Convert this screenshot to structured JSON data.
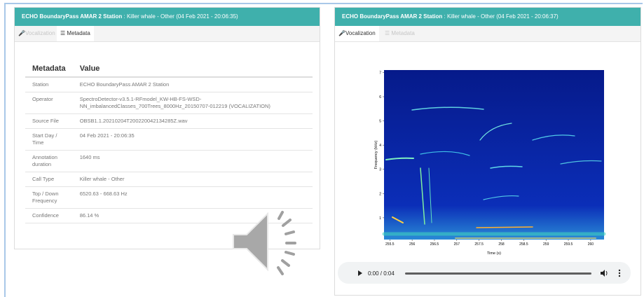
{
  "left_panel": {
    "title_bold": "ECHO BoundaryPass AMAR 2 Station",
    "title_rest": " : Killer whale - Other (04 Feb 2021 - 20:06:35)",
    "tabs": [
      "Vocalization",
      "Metadata"
    ],
    "table": {
      "header": [
        "Metadata",
        "Value"
      ],
      "rows": [
        [
          "Station",
          "ECHO BoundaryPass AMAR 2 Station"
        ],
        [
          "Operator",
          "SpectroDetector-v3.5.1-RFmodel_KW-HB-FS-WSD-NN_imbalancedClasses_700Trees_8000Hz_20150707-012219 (VOCALIZATION)"
        ],
        [
          "Source File",
          "OBSB1.1.20210204T200220042134285Z.wav"
        ],
        [
          "Start Day / Time",
          "04 Feb 2021 - 20:06:35"
        ],
        [
          "Annotation duration",
          "1640 ms"
        ],
        [
          "Call Type",
          "Killer whale - Other"
        ],
        [
          "Top / Down Frequency",
          "6520.63 - 668.63 Hz"
        ],
        [
          "Confidence",
          "86.14 %"
        ]
      ]
    }
  },
  "right_panel": {
    "title_bold": "ECHO BoundaryPass AMAR 2 Station",
    "title_rest": " : Killer whale - Other (04 Feb 2021 - 20:06:37)",
    "tabs": [
      "Vocalization",
      "Metadata"
    ],
    "spectrogram": {
      "xlabel": "Time (s)",
      "ylabel": "Frequency (kHz)",
      "xlim": [
        255.37,
        260.3
      ],
      "xticks": [
        255.5,
        256,
        256.5,
        257,
        257.5,
        258,
        258.5,
        259,
        259.5,
        260
      ],
      "ylim": [
        0.1,
        7.1
      ],
      "yticks": [
        1,
        2,
        3,
        4,
        5,
        6,
        7
      ]
    },
    "player": {
      "time": "0:00 / 0:04"
    }
  }
}
